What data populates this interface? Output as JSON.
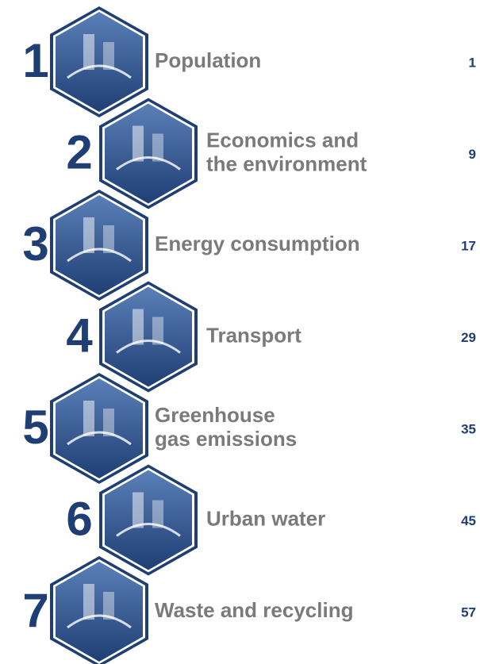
{
  "chapters": [
    {
      "number": 1,
      "title_lines": [
        "Population"
      ],
      "page": 1
    },
    {
      "number": 2,
      "title_lines": [
        "Economics and",
        "the environment"
      ],
      "page": 9
    },
    {
      "number": 3,
      "title_lines": [
        "Energy consumption"
      ],
      "page": 17
    },
    {
      "number": 4,
      "title_lines": [
        "Transport"
      ],
      "page": 29
    },
    {
      "number": 5,
      "title_lines": [
        "Greenhouse",
        "gas emissions"
      ],
      "page": 35
    },
    {
      "number": 6,
      "title_lines": [
        "Urban water"
      ],
      "page": 45
    },
    {
      "number": 7,
      "title_lines": [
        "Waste and recycling"
      ],
      "page": 57
    }
  ]
}
